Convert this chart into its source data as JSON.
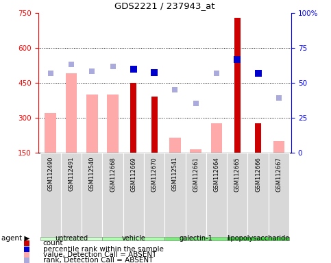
{
  "title": "GDS2221 / 237943_at",
  "samples": [
    "GSM112490",
    "GSM112491",
    "GSM112540",
    "GSM112668",
    "GSM112669",
    "GSM112670",
    "GSM112541",
    "GSM112661",
    "GSM112664",
    "GSM112665",
    "GSM112666",
    "GSM112667"
  ],
  "groups": [
    {
      "label": "untreated",
      "color": "#ccffcc",
      "start": 0,
      "end": 2
    },
    {
      "label": "vehicle",
      "color": "#aaffaa",
      "start": 3,
      "end": 5
    },
    {
      "label": "galectin-1",
      "color": "#77ee77",
      "start": 6,
      "end": 8
    },
    {
      "label": "lipopolysaccharide",
      "color": "#44dd44",
      "start": 9,
      "end": 11
    }
  ],
  "count_values": [
    null,
    null,
    null,
    null,
    450,
    390,
    null,
    null,
    null,
    730,
    275,
    null
  ],
  "pct_rank_left": [
    null,
    null,
    null,
    null,
    510,
    495,
    null,
    null,
    null,
    550,
    490,
    null
  ],
  "absent_value": [
    320,
    490,
    400,
    400,
    null,
    null,
    215,
    165,
    275,
    null,
    null,
    200
  ],
  "absent_rank": [
    490,
    530,
    500,
    520,
    null,
    null,
    420,
    360,
    490,
    null,
    null,
    385
  ],
  "ylim_left": [
    150,
    750
  ],
  "ylim_right": [
    0,
    100
  ],
  "yticks_left": [
    150,
    300,
    450,
    600,
    750
  ],
  "yticks_right": [
    0,
    25,
    50,
    75,
    100
  ],
  "gridlines": [
    300,
    450,
    600
  ],
  "bar_color_count": "#cc0000",
  "bar_color_absent": "#ffaaaa",
  "dot_color_pct": "#0000cc",
  "dot_color_rank": "#aaaadd",
  "legend": [
    {
      "color": "#cc0000",
      "label": "count"
    },
    {
      "color": "#0000cc",
      "label": "percentile rank within the sample"
    },
    {
      "color": "#ffaaaa",
      "label": "value, Detection Call = ABSENT"
    },
    {
      "color": "#aaaadd",
      "label": "rank, Detection Call = ABSENT"
    }
  ]
}
